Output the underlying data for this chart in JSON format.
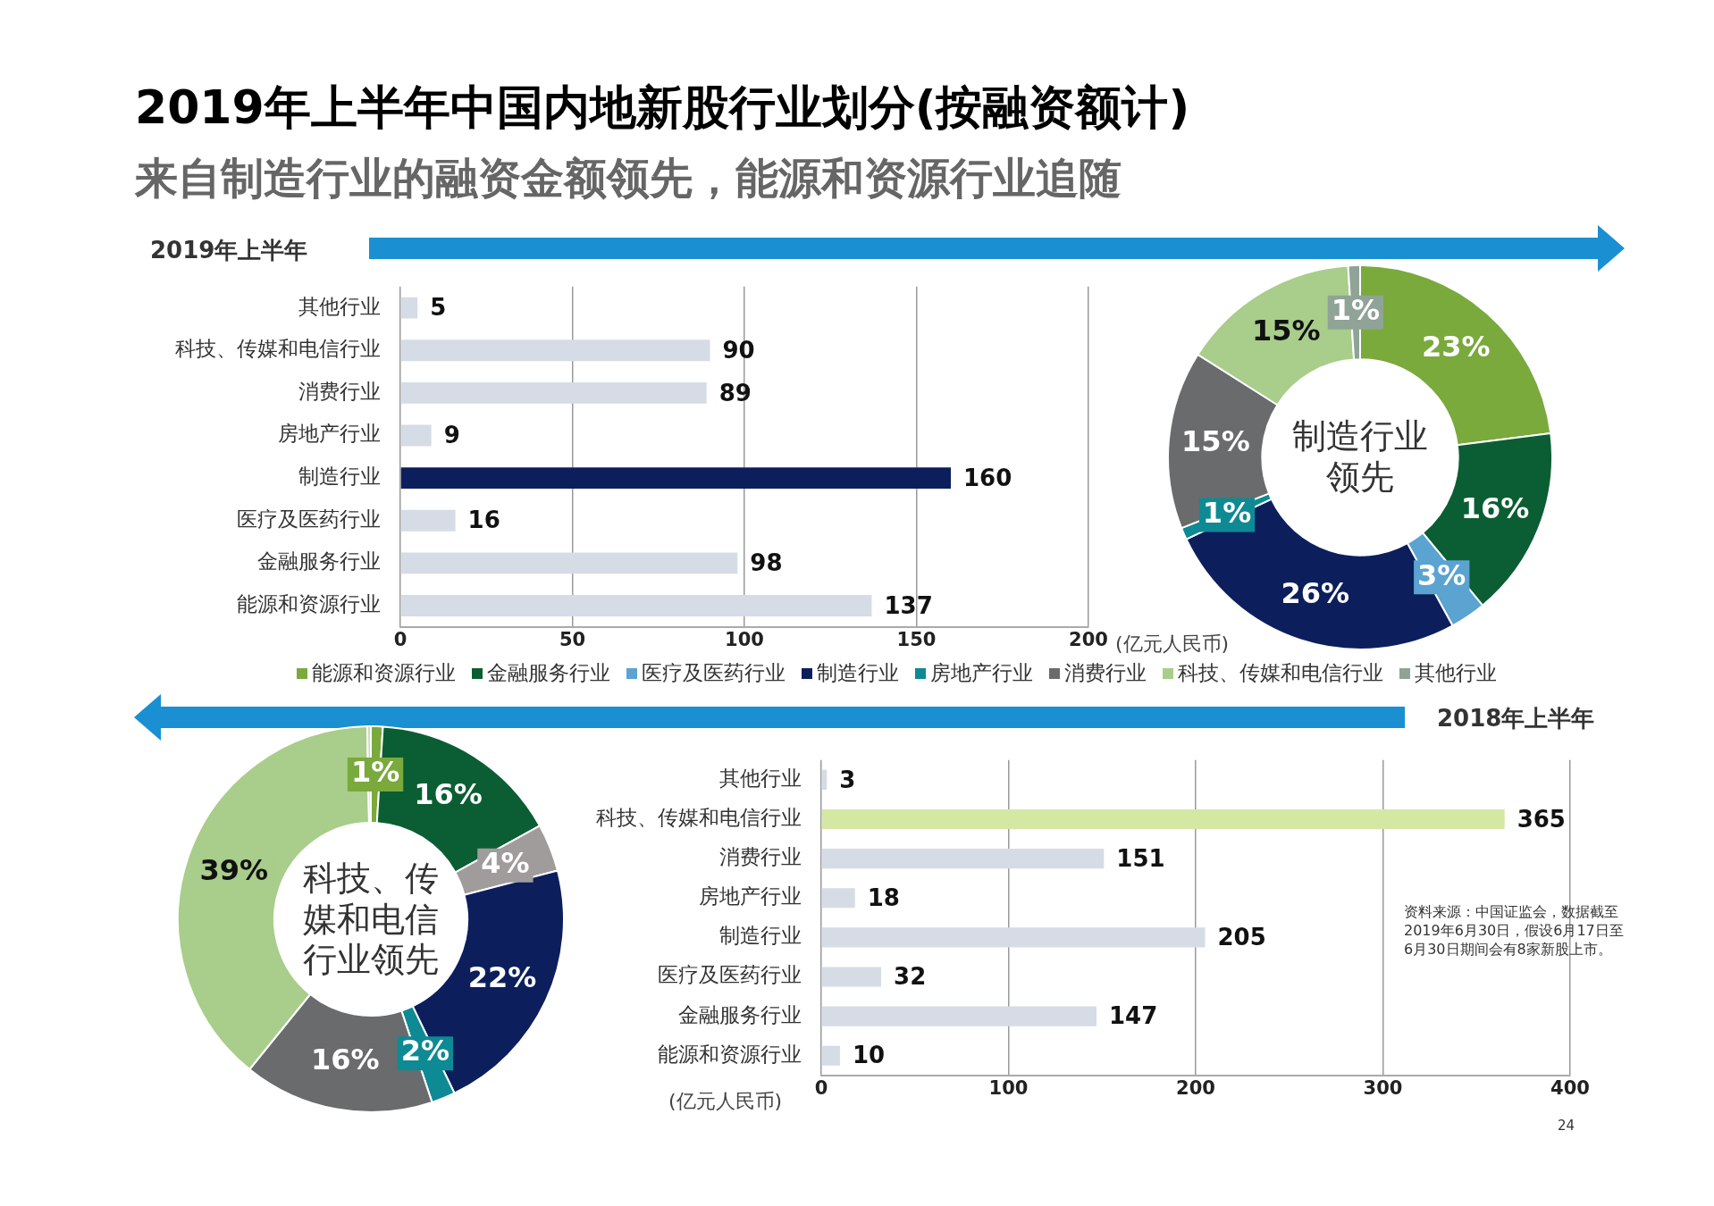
{
  "chart_data": [
    {
      "type": "bar",
      "orientation": "horizontal",
      "title": "2019年上半年中国内地新股行业划分(按融资额计)",
      "subtitle": "来自制造行业的融资金额领先，能源和资源行业追随",
      "annotations": [
        "2019年上半年"
      ],
      "categories": [
        "其他行业",
        "科技、传媒和电信行业",
        "消费行业",
        "房地产行业",
        "制造行业",
        "医疗及医药行业",
        "金融服务行业",
        "能源和资源行业"
      ],
      "values": [
        5,
        90,
        89,
        9,
        160,
        16,
        98,
        137
      ],
      "colors": [
        "#d6dce6",
        "#d6dce6",
        "#d6dce6",
        "#d6dce6",
        "#0c1f5c",
        "#d6dce6",
        "#d6dce6",
        "#d6dce6"
      ],
      "xlim": [
        0,
        200
      ],
      "xticks": [
        0,
        50,
        100,
        150,
        200
      ],
      "xlabel": "(亿元人民币)",
      "grid": "x",
      "data_labels": true
    },
    {
      "type": "donut",
      "annotations": [
        "制造行业领先"
      ],
      "legend": "bottom",
      "categories": [
        "能源和资源行业",
        "金融服务行业",
        "医疗及医药行业",
        "制造行业",
        "房地产行业",
        "消费行业",
        "科技、传媒和电信行业",
        "其他行业"
      ],
      "values": [
        23,
        16,
        3,
        26,
        1,
        15,
        15,
        1
      ],
      "value_labels": [
        "23%",
        "16%",
        "3%",
        "26%",
        "1%",
        "15%",
        "15%",
        "1%"
      ],
      "colors": [
        "#7aa93c",
        "#0b5e33",
        "#5ba3d0",
        "#0c1f5c",
        "#0e8a94",
        "#6a6b6d",
        "#a9cd8a",
        "#8fa396"
      ]
    },
    {
      "type": "donut",
      "annotations": [
        "科技、传媒和电信行业领先"
      ],
      "categories": [
        null,
        null,
        null,
        null,
        null,
        null,
        null,
        null
      ],
      "values": [
        1,
        16,
        4,
        22,
        2,
        16,
        39,
        0.3
      ],
      "value_labels": [
        "1%",
        "16%",
        "4%",
        "22%",
        "2%",
        "16%",
        "39%",
        null
      ],
      "colors": [
        "#7aa93c",
        "#0b5e33",
        "#a09c9c",
        "#0c1f5c",
        "#0e8a94",
        "#6a6b6d",
        "#a9cd8a",
        "#c9d9c0"
      ]
    },
    {
      "type": "bar",
      "orientation": "horizontal",
      "annotations": [
        "2018年上半年",
        "资料来源：中国证监会，数据截至2019年6月30日，假设6月17日至6月30日期间会有8家新股上市。",
        "24"
      ],
      "categories": [
        "其他行业",
        "科技、传媒和电信行业",
        "消费行业",
        "房地产行业",
        "制造行业",
        "医疗及医药行业",
        "金融服务行业",
        "能源和资源行业"
      ],
      "values": [
        3,
        365,
        151,
        18,
        205,
        32,
        147,
        10
      ],
      "colors": [
        "#d6dce6",
        "#d4e8a4",
        "#d6dce6",
        "#d6dce6",
        "#d6dce6",
        "#d6dce6",
        "#d6dce6",
        "#d6dce6"
      ],
      "xlim": [
        0,
        400
      ],
      "xticks": [
        0,
        100,
        200,
        300,
        400
      ],
      "xlabel": "(亿元人民币)",
      "grid": "x",
      "data_labels": true
    }
  ]
}
